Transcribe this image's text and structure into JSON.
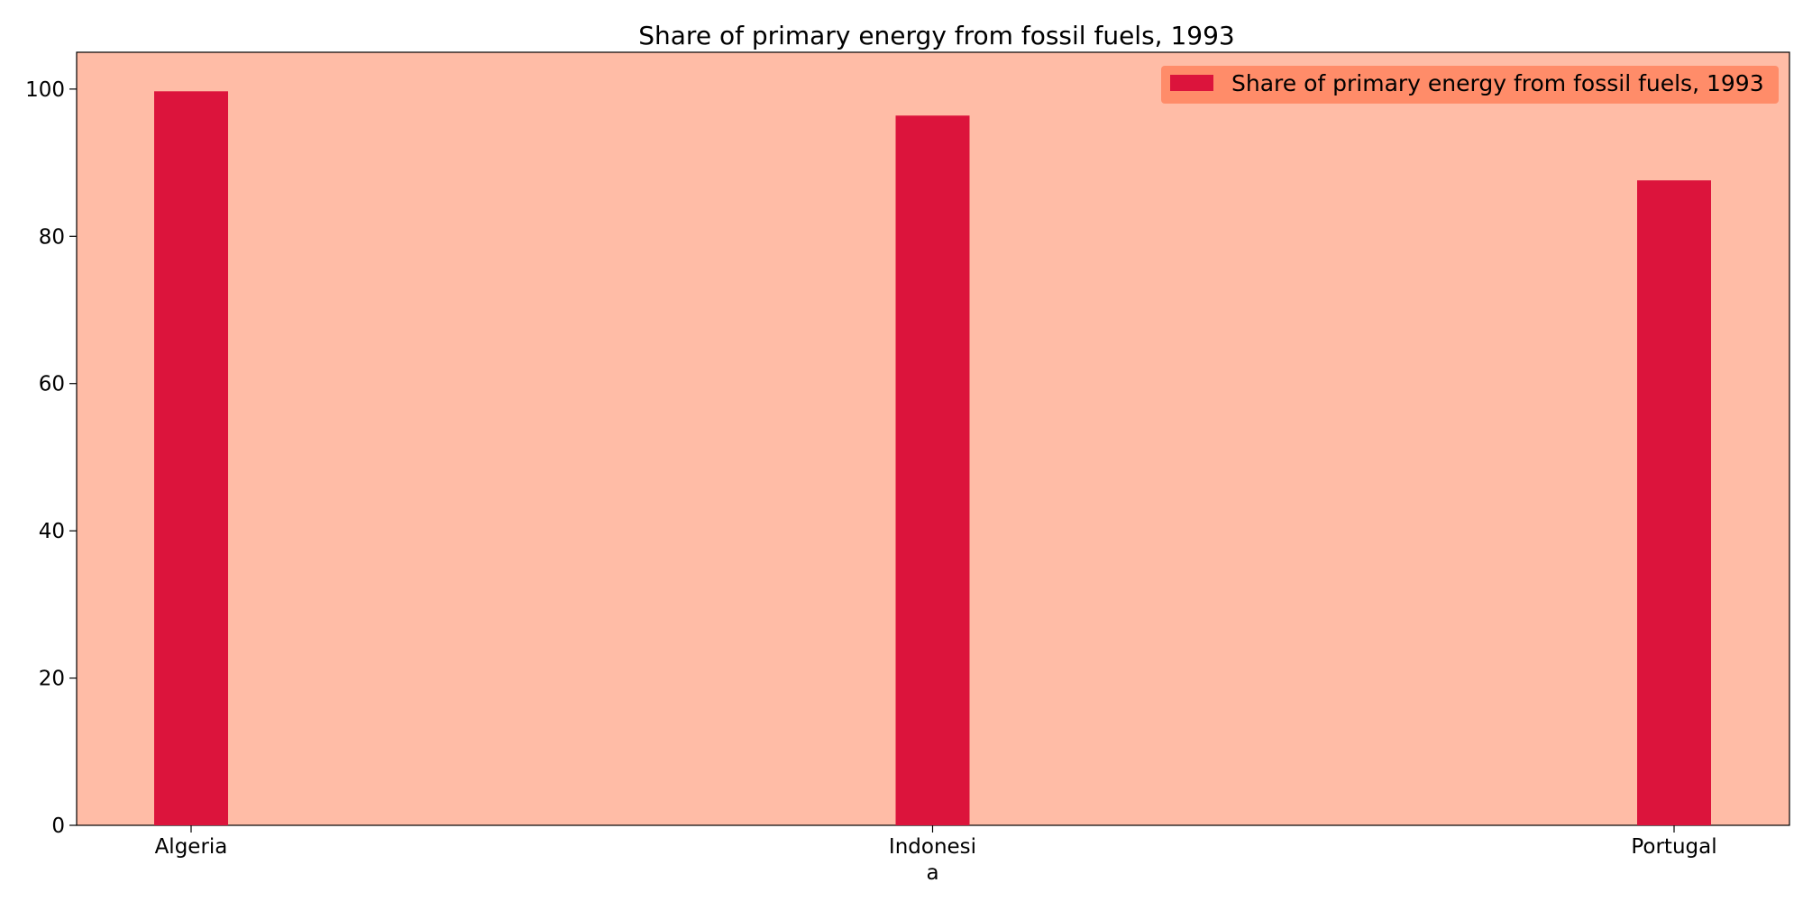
{
  "chart_data": {
    "type": "bar",
    "title": "Share of primary energy from fossil fuels, 1993",
    "xlabel": "",
    "ylabel": "",
    "categories": [
      [
        "Algeria"
      ],
      [
        "Indonesi",
        "a"
      ],
      [
        "Portugal"
      ]
    ],
    "series": [
      {
        "name": "Share of primary energy from fossil fuels, 1993",
        "values": [
          99.7,
          96.4,
          87.6
        ],
        "color": "#dc143c"
      }
    ],
    "ylim": [
      0,
      105
    ],
    "yticks": [
      0,
      20,
      40,
      60,
      80,
      100
    ],
    "grid": false,
    "legend": "top-right",
    "colors": {
      "plot_background": "#ffbca6",
      "legend_background": "#ff8c69",
      "bar": "#dc143c"
    }
  }
}
